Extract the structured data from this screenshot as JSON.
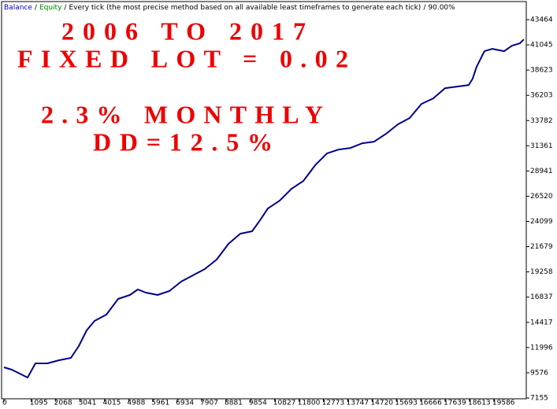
{
  "chart_data": {
    "type": "line",
    "header": {
      "items": [
        {
          "text": "Balance",
          "color": "#0000c0"
        },
        {
          "text": "Equity",
          "color": "#008000"
        }
      ],
      "separator": "/",
      "method": "Every tick (the most precise method based on all available least timeframes to generate each tick)",
      "quality": "90.00%"
    },
    "annotations": [
      "2006 TO 2017",
      "FIXED LOT = 0.02",
      "2.3% MONTHLY",
      "DD=12.5%"
    ],
    "x": [
      0,
      315,
      630,
      945,
      1260,
      1732,
      2204,
      2677,
      2992,
      3307,
      3622,
      4094,
      4566,
      5038,
      5353,
      5668,
      6141,
      6613,
      7085,
      7558,
      8030,
      8502,
      8975,
      9447,
      9919,
      10234,
      10549,
      11022,
      11494,
      11966,
      12439,
      12911,
      13383,
      13856,
      14328,
      14800,
      15273,
      15745,
      16217,
      16690,
      17162,
      17634,
      18107,
      18579,
      18736,
      18894,
      19209,
      19524,
      19996,
      20311,
      20626,
      20783
    ],
    "series": [
      {
        "name": "Balance",
        "color": "#00008b",
        "values": [
          10098,
          9872,
          9495,
          9117,
          10476,
          10476,
          10778,
          11004,
          12136,
          13645,
          14551,
          15155,
          16664,
          17042,
          17570,
          17268,
          17042,
          17419,
          18325,
          18928,
          19532,
          20438,
          21947,
          22928,
          23155,
          24211,
          25343,
          26098,
          27230,
          27985,
          29494,
          30626,
          31004,
          31155,
          31607,
          31758,
          32513,
          33419,
          34022,
          35381,
          35909,
          36890,
          37041,
          37192,
          37796,
          38928,
          40437,
          40664,
          40437,
          40966,
          41192,
          41569
        ]
      }
    ],
    "xlim": [
      -95,
      20880
    ],
    "ylim": [
      7080,
      45200
    ],
    "xticks": [
      0,
      1095,
      2068,
      3041,
      4015,
      4988,
      5961,
      6934,
      7907,
      8881,
      9854,
      10827,
      11800,
      12773,
      13747,
      14720,
      15693,
      16666,
      17639,
      18613,
      19586
    ],
    "yticks": [
      7155,
      9576,
      11996,
      14417,
      16837,
      19258,
      21679,
      24099,
      26520,
      28941,
      31361,
      33782,
      36203,
      38623,
      41045,
      43464
    ]
  }
}
